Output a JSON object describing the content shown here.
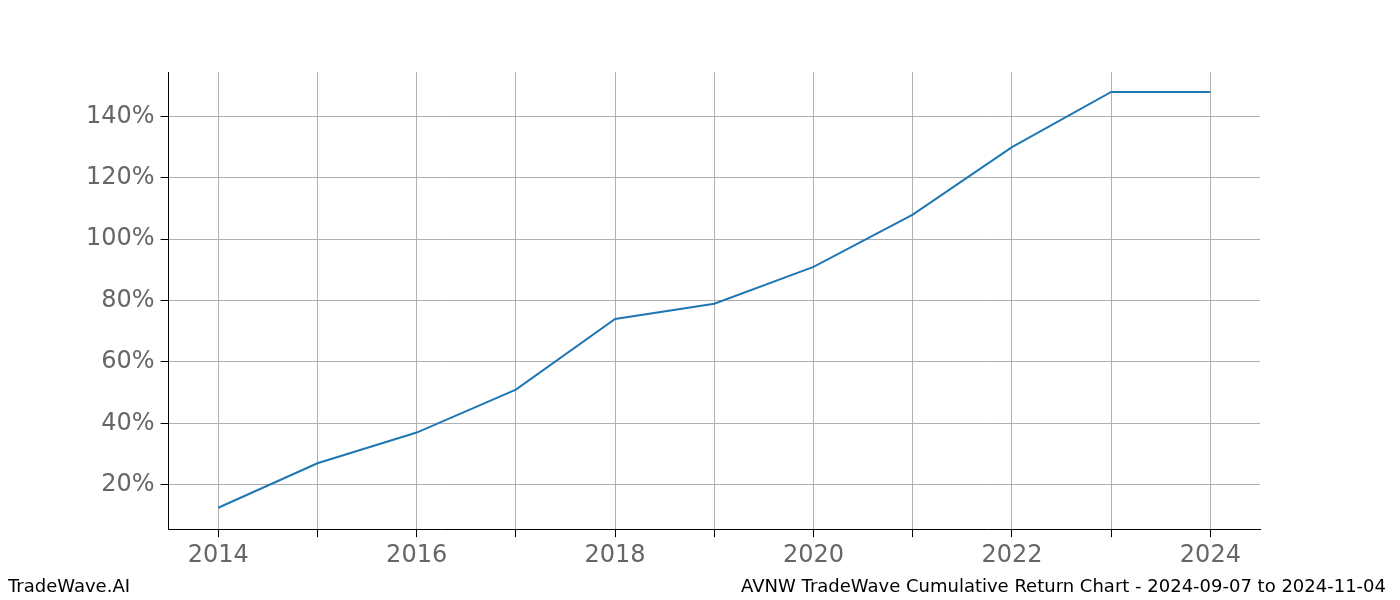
{
  "chart_data": {
    "type": "line",
    "categories": [
      "2014",
      null,
      "2016",
      null,
      "2018",
      null,
      "2020",
      null,
      "2022",
      null,
      "2024"
    ],
    "values": [
      12.5,
      27,
      37,
      51,
      74,
      79,
      91,
      108,
      130,
      148,
      148
    ],
    "color": "#1f77b4",
    "ylim": [
      5.5,
      154.5
    ],
    "yticks": [
      {
        "value": 20,
        "label": "20%"
      },
      {
        "value": 40,
        "label": "40%"
      },
      {
        "value": 60,
        "label": "60%"
      },
      {
        "value": 80,
        "label": "80%"
      },
      {
        "value": 100,
        "label": "100%"
      },
      {
        "value": 120,
        "label": "120%"
      },
      {
        "value": 140,
        "label": "140%"
      }
    ],
    "grid": true,
    "annotations": [
      "TradeWave.AI",
      "AVNW TradeWave Cumulative Return Chart - 2024-09-07 to 2024-11-04"
    ]
  }
}
